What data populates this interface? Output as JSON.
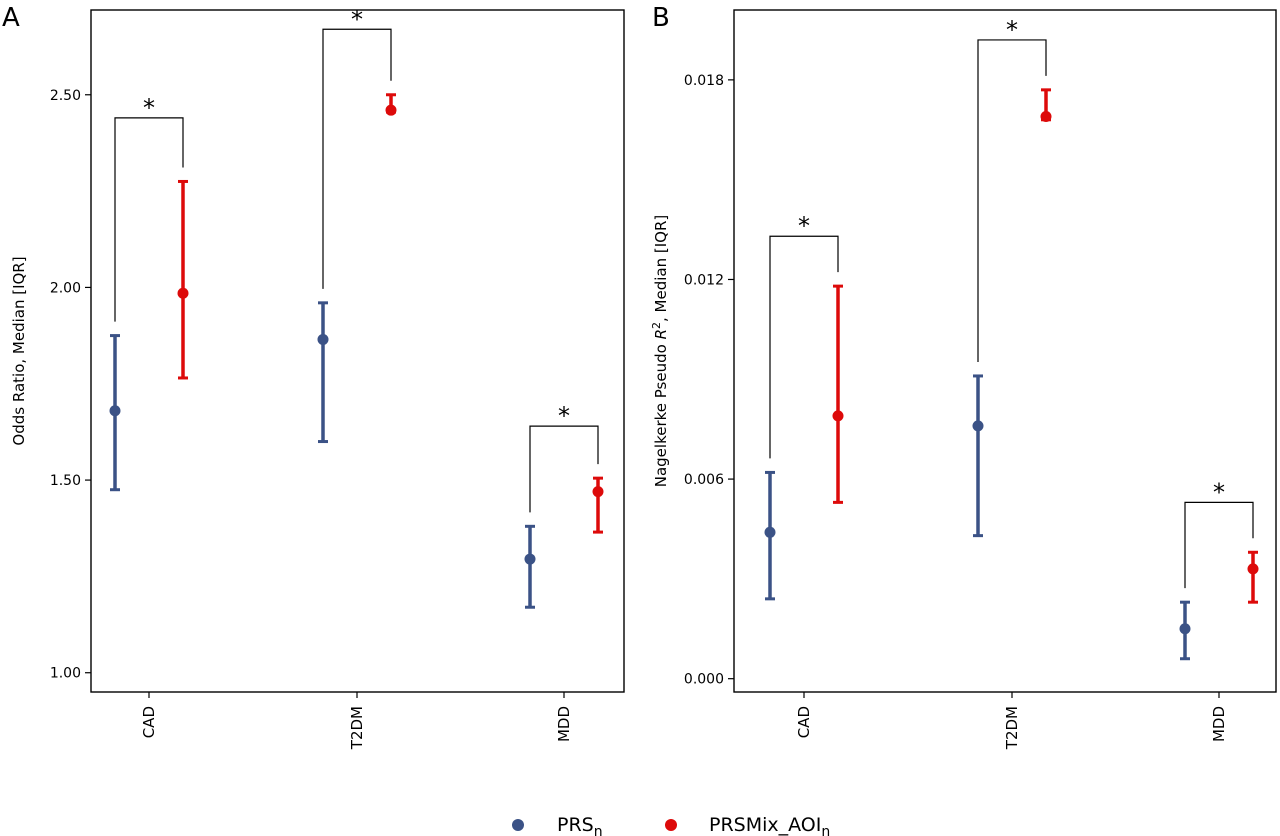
{
  "legend": {
    "items": [
      {
        "label": "PRS",
        "sub": "n",
        "color": "#3b5286"
      },
      {
        "label": "PRSMix_AOI",
        "sub": "n",
        "color": "#dd0a0a"
      }
    ]
  },
  "chart_data": [
    {
      "type": "errorbar",
      "panel": "A",
      "ylabel": "Odds Ratio, Median [IQR]",
      "ylim": [
        0.95,
        2.72
      ],
      "yticks": [
        1.0,
        1.5,
        2.0,
        2.5
      ],
      "ytick_labels": [
        "1.00",
        "1.50",
        "2.00",
        "2.50"
      ],
      "categories": [
        "CAD",
        "T2DM",
        "MDD"
      ],
      "series": [
        {
          "name": "PRS_n",
          "color": "#3b5286",
          "median": [
            1.68,
            1.865,
            1.295
          ],
          "q1": [
            1.475,
            1.6,
            1.17
          ],
          "q3": [
            1.875,
            1.96,
            1.38
          ]
        },
        {
          "name": "PRSMix_AOI_n",
          "color": "#dd0a0a",
          "median": [
            1.985,
            2.46,
            1.47
          ],
          "q1": [
            1.765,
            2.455,
            1.365
          ],
          "q3": [
            2.275,
            2.5,
            1.505
          ]
        }
      ],
      "significance": [
        {
          "category": "CAD",
          "bar_y": 2.44,
          "label": "*"
        },
        {
          "category": "T2DM",
          "bar_y": 2.67,
          "label": "*"
        },
        {
          "category": "MDD",
          "bar_y": 1.64,
          "label": "*"
        }
      ],
      "grid": false
    },
    {
      "type": "errorbar",
      "panel": "B",
      "ylabel_main": "Nagelkerke Pseudo ",
      "ylabel_var": "R",
      "ylabel_sup": "2",
      "ylabel_tail": ", Median [IQR]",
      "ylim": [
        -0.0004,
        0.0201
      ],
      "yticks": [
        0.0,
        0.006,
        0.012,
        0.018
      ],
      "ytick_labels": [
        "0.000",
        "0.006",
        "0.012",
        "0.018"
      ],
      "categories": [
        "CAD",
        "T2DM",
        "MDD"
      ],
      "series": [
        {
          "name": "PRS_n",
          "color": "#3b5286",
          "median": [
            0.0044,
            0.0076,
            0.0015
          ],
          "q1": [
            0.0024,
            0.0043,
            0.0006
          ],
          "q3": [
            0.0062,
            0.0091,
            0.0023
          ]
        },
        {
          "name": "PRSMix_AOI_n",
          "color": "#dd0a0a",
          "median": [
            0.0079,
            0.0169,
            0.0033
          ],
          "q1": [
            0.0053,
            0.0168,
            0.0023
          ],
          "q3": [
            0.0118,
            0.0177,
            0.0038
          ]
        }
      ],
      "significance": [
        {
          "category": "CAD",
          "bar_y": 0.0133,
          "label": "*"
        },
        {
          "category": "T2DM",
          "bar_y": 0.0192,
          "label": "*"
        },
        {
          "category": "MDD",
          "bar_y": 0.0053,
          "label": "*"
        }
      ],
      "grid": false
    }
  ]
}
